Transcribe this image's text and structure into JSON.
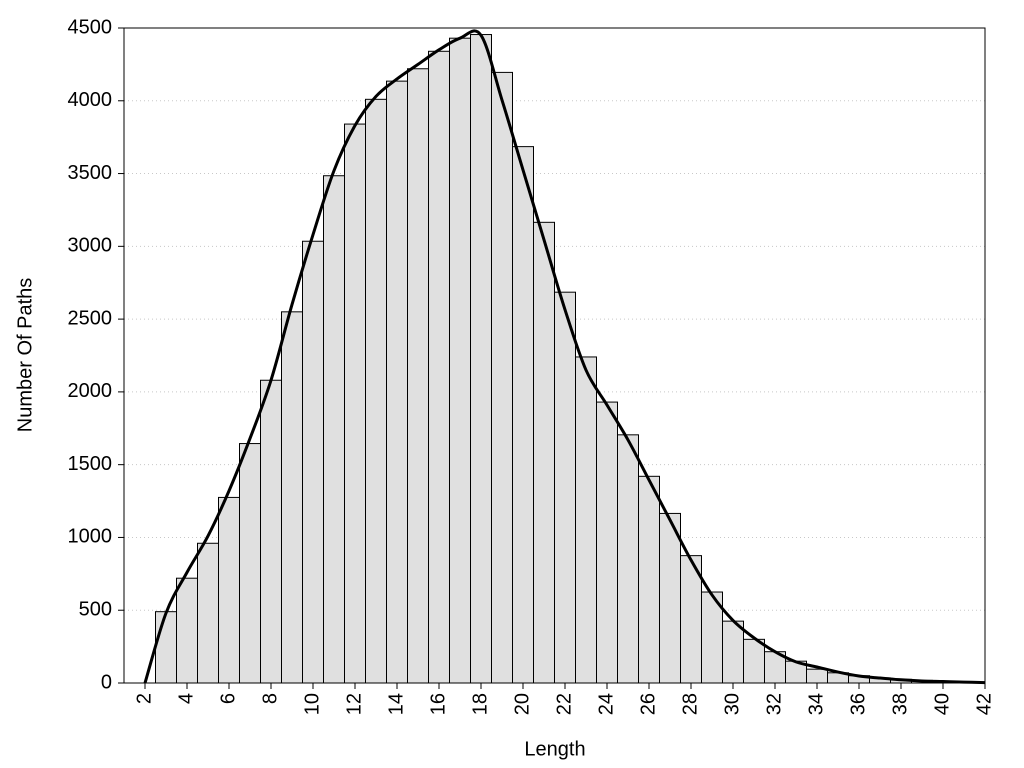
{
  "chart_data": {
    "type": "histogram",
    "x_label": "Length",
    "y_label": "Number Of Paths",
    "bins": [
      2.5,
      3.5,
      4.5,
      5.5,
      6.5,
      7.5,
      8.5,
      9.5,
      10.5,
      11.5,
      12.5,
      13.5,
      14.5,
      15.5,
      16.5,
      17.5,
      18.5,
      19.5,
      20.5,
      21.5,
      22.5,
      23.5,
      24.5,
      25.5,
      26.5,
      27.5,
      28.5,
      29.5,
      30.5,
      31.5,
      32.5,
      33.5,
      34.5,
      35.5,
      36.5,
      37.5,
      38.5,
      39.5,
      40.5,
      41.5
    ],
    "values": [
      490,
      720,
      960,
      1275,
      1645,
      2080,
      2550,
      3035,
      3485,
      3840,
      4010,
      4135,
      4220,
      4340,
      4430,
      4455,
      4195,
      3685,
      3165,
      2685,
      2240,
      1930,
      1705,
      1420,
      1165,
      875,
      625,
      425,
      300,
      215,
      150,
      95,
      70,
      50,
      35,
      25,
      18,
      12,
      8
    ],
    "color": "#e0e0e0",
    "line": {
      "x": [
        2,
        3,
        4,
        5,
        6,
        7,
        8,
        9,
        10,
        11,
        12,
        13,
        14,
        15,
        16,
        17,
        18,
        19,
        20,
        21,
        22,
        23,
        24,
        25,
        26,
        27,
        28,
        29,
        30,
        31,
        32,
        33,
        34,
        35,
        36,
        37,
        38,
        39,
        40,
        41,
        42
      ],
      "values": [
        0,
        480,
        760,
        1010,
        1320,
        1680,
        2080,
        2600,
        3080,
        3520,
        3830,
        4030,
        4150,
        4250,
        4350,
        4430,
        4450,
        4005,
        3525,
        3045,
        2565,
        2150,
        1910,
        1670,
        1395,
        1120,
        845,
        605,
        430,
        310,
        215,
        145,
        110,
        75,
        48,
        34,
        22,
        14,
        10,
        6,
        3
      ],
      "color": "#000000"
    },
    "xlim": [
      1,
      42
    ],
    "ylim": [
      0,
      4500
    ],
    "xticks": [
      2,
      4,
      6,
      8,
      10,
      12,
      14,
      16,
      18,
      20,
      22,
      24,
      26,
      28,
      30,
      32,
      34,
      36,
      38,
      40,
      42
    ],
    "yticks": [
      0,
      500,
      1000,
      1500,
      2000,
      2500,
      3000,
      3500,
      4000,
      4500
    ],
    "grid": true
  }
}
